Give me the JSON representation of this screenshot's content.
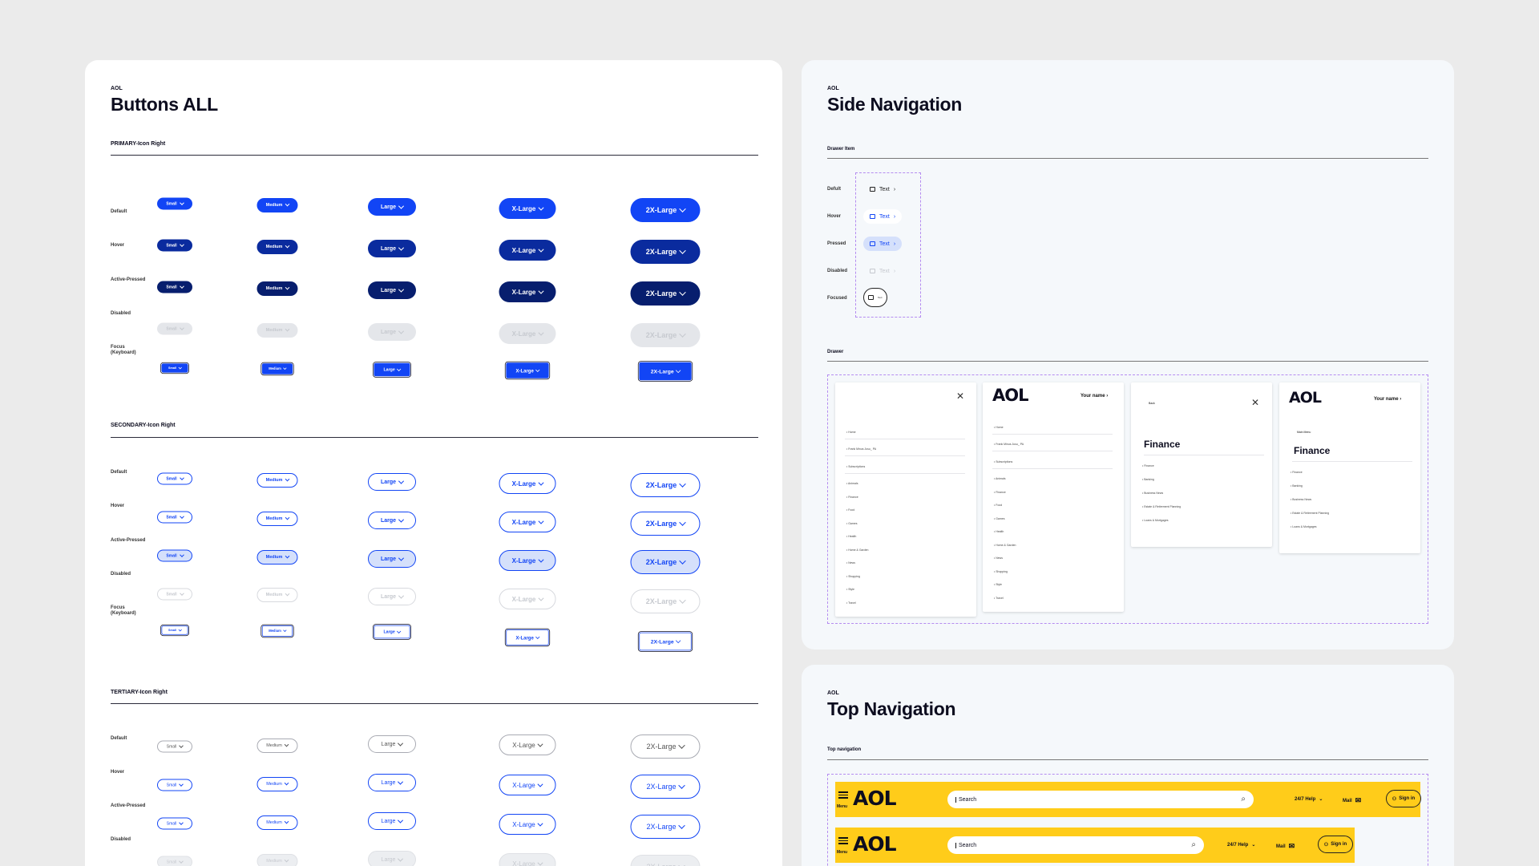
{
  "buttons_panel": {
    "brand": "AOL",
    "title": "Buttons ALL",
    "primary_title": "PRIMARY-Icon Right",
    "secondary_title": "SECONDARY-Icon Right",
    "tertiary_title": "TERTIARY-Icon Right",
    "states": [
      "Default",
      "Hover",
      "Active-Pressed",
      "Disabled",
      "Focus\n(Keyboard)"
    ],
    "sizes": [
      "Small",
      "Medium",
      "Large",
      "X-Large",
      "2X-Large"
    ]
  },
  "side_nav_panel": {
    "brand": "AOL",
    "title": "Side Navigation",
    "drawer_item_title": "Drawer Item",
    "drawer_title": "Drawer",
    "item_states": [
      "Defult",
      "Hover",
      "Pressed",
      "Disabled",
      "Focused"
    ],
    "item_text": "Text",
    "drawer_cards": {
      "logo": "AOL",
      "your_name": "Your name",
      "finance": "Finance",
      "back": "Back",
      "main_menu": "Main Menu",
      "card1_items": [
        "Home",
        "Frank Minus Jusu_ PA",
        "Subscriptions",
        "Animals",
        "Finance",
        "Food",
        "Games",
        "Health",
        "Home & Garden",
        "News",
        "Shopping",
        "Style",
        "Travel"
      ],
      "card2_items": [
        "Home",
        "Frank Minus Jusu_ PA",
        "Subscriptions",
        "Animals",
        "Finance",
        "Food",
        "Games",
        "Health",
        "Home & Garden",
        "News",
        "Shopping",
        "Style",
        "Travel"
      ],
      "finance_items": [
        "Finance",
        "Banking",
        "Business News",
        "Estate & Retirement Planning",
        "Loans & Mortgages"
      ]
    }
  },
  "top_nav_panel": {
    "brand": "AOL",
    "title": "Top Navigation",
    "section_title": "Top navigation",
    "menu_label": "Menu",
    "logo": "AOL",
    "search_placeholder": "Search",
    "help_label": "24/7 Help",
    "mail_label": "Mail",
    "signin_label": "Sign in"
  },
  "colors": {
    "primary_blue": "#1245f5",
    "primary_hover": "#0a2b9e",
    "primary_active": "#071e6e",
    "aol_yellow": "#ffcc1a",
    "drawer_dash": "#b58cf0"
  }
}
